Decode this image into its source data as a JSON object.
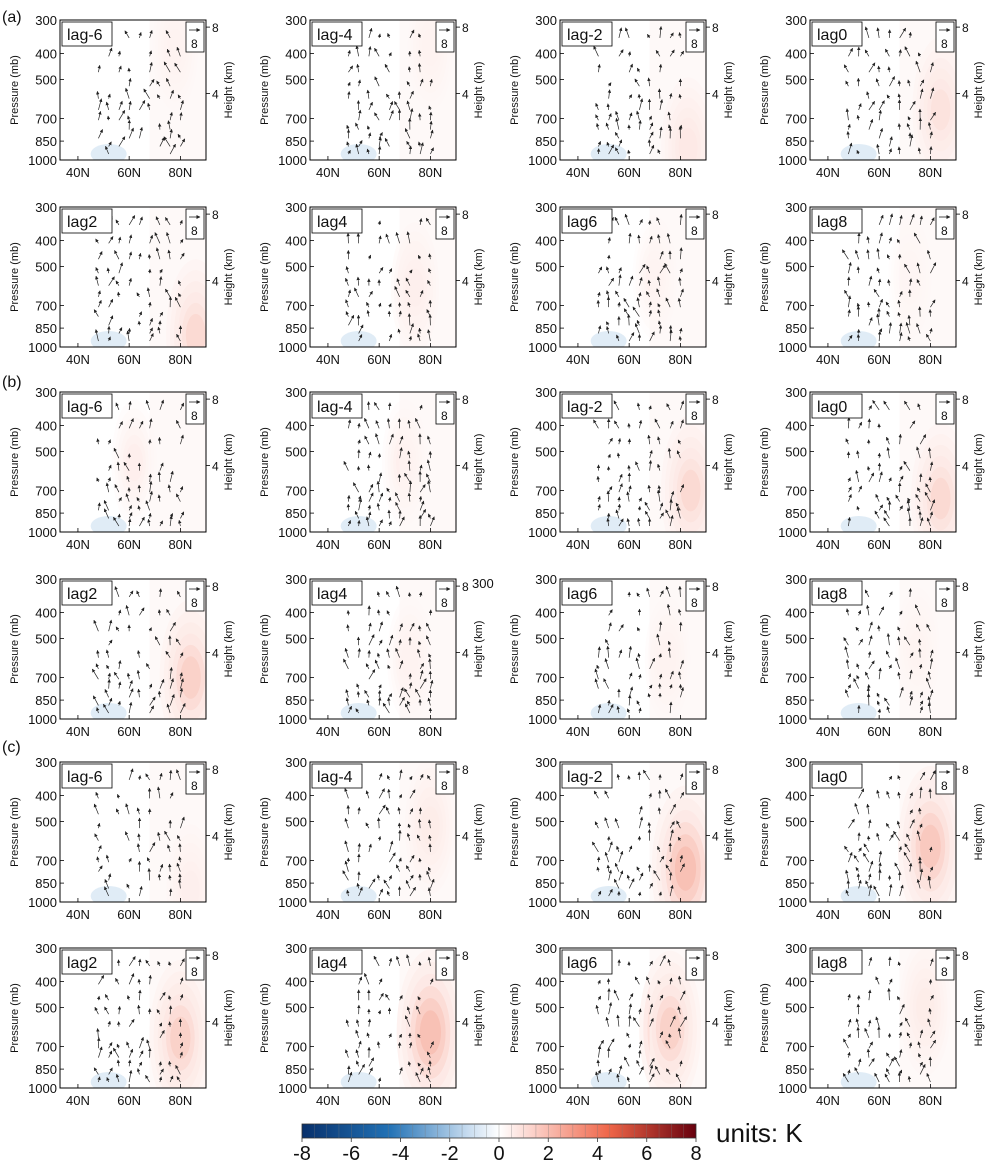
{
  "figure": {
    "group_labels": [
      "(a)",
      "(b)",
      "(c)"
    ],
    "units_label": "units: K",
    "stray_label": "300"
  },
  "chart_data": {
    "type": "heatmap",
    "description_text": {
      "ylabel_left": "Pressure (mb)",
      "ylabel_right": "Height (km)"
    },
    "x_ticks": [
      "40N",
      "60N",
      "80N"
    ],
    "x_tick_values": [
      40,
      60,
      80
    ],
    "x_range": [
      33,
      90
    ],
    "y_ticks": [
      "300",
      "400",
      "500",
      "700",
      "850",
      "1000"
    ],
    "y_tick_values": [
      300,
      400,
      500,
      700,
      850,
      1000
    ],
    "y_range": [
      1000,
      300
    ],
    "height_ticks": [
      "4",
      "8"
    ],
    "height_tick_values_km": [
      4,
      8
    ],
    "reference_vector": "8",
    "colorbar": {
      "ticks": [
        "-8",
        "-6",
        "-4",
        "-2",
        "0",
        "2",
        "4",
        "6",
        "8"
      ],
      "range": [
        -8,
        8
      ],
      "levels": 32,
      "negative_colors": [
        "#08306b",
        "#4292c6",
        "#c6dbef"
      ],
      "positive_colors": [
        "#fcd5ce",
        "#ef6548",
        "#67000d"
      ]
    },
    "groups": [
      {
        "label": "(a)",
        "panels": [
          {
            "lag": "lag-6",
            "peak": 1.0,
            "center_lat": 78,
            "center_p": 380
          },
          {
            "lag": "lag-4",
            "peak": 1.0,
            "center_lat": 80,
            "center_p": 380
          },
          {
            "lag": "lag-2",
            "peak": 2.5,
            "center_lat": 83,
            "center_p": 900
          },
          {
            "lag": "lag0",
            "peak": 3.0,
            "center_lat": 84,
            "center_p": 650
          },
          {
            "lag": "lag2",
            "peak": 3.5,
            "center_lat": 86,
            "center_p": 900
          },
          {
            "lag": "lag4",
            "peak": 1.5,
            "center_lat": 74,
            "center_p": 600
          },
          {
            "lag": "lag6",
            "peak": 0.8,
            "center_lat": 70,
            "center_p": 550
          },
          {
            "lag": "lag8",
            "peak": 0.6,
            "center_lat": 72,
            "center_p": 550
          }
        ]
      },
      {
        "label": "(b)",
        "panels": [
          {
            "lag": "lag-6",
            "peak": 1.0,
            "center_lat": 62,
            "center_p": 550
          },
          {
            "lag": "lag-4",
            "peak": 1.0,
            "center_lat": 70,
            "center_p": 550
          },
          {
            "lag": "lag-2",
            "peak": 3.5,
            "center_lat": 84,
            "center_p": 700
          },
          {
            "lag": "lag0",
            "peak": 3.5,
            "center_lat": 84,
            "center_p": 750
          },
          {
            "lag": "lag2",
            "peak": 4.0,
            "center_lat": 84,
            "center_p": 700
          },
          {
            "lag": "lag4",
            "peak": 1.0,
            "center_lat": 72,
            "center_p": 600
          },
          {
            "lag": "lag6",
            "peak": 1.0,
            "center_lat": 75,
            "center_p": 600
          },
          {
            "lag": "lag8",
            "peak": 0.8,
            "center_lat": 75,
            "center_p": 550
          }
        ]
      },
      {
        "label": "(c)",
        "panels": [
          {
            "lag": "lag-6",
            "peak": 1.5,
            "center_lat": 84,
            "center_p": 900
          },
          {
            "lag": "lag-4",
            "peak": 2.0,
            "center_lat": 80,
            "center_p": 520
          },
          {
            "lag": "lag-2",
            "peak": 5.0,
            "center_lat": 82,
            "center_p": 750
          },
          {
            "lag": "lag0",
            "peak": 4.5,
            "center_lat": 80,
            "center_p": 620
          },
          {
            "lag": "lag2",
            "peak": 4.0,
            "center_lat": 80,
            "center_p": 650
          },
          {
            "lag": "lag4",
            "peak": 5.0,
            "center_lat": 80,
            "center_p": 620
          },
          {
            "lag": "lag6",
            "peak": 4.0,
            "center_lat": 76,
            "center_p": 600
          },
          {
            "lag": "lag8",
            "peak": 2.0,
            "center_lat": 78,
            "center_p": 500
          }
        ]
      }
    ]
  }
}
